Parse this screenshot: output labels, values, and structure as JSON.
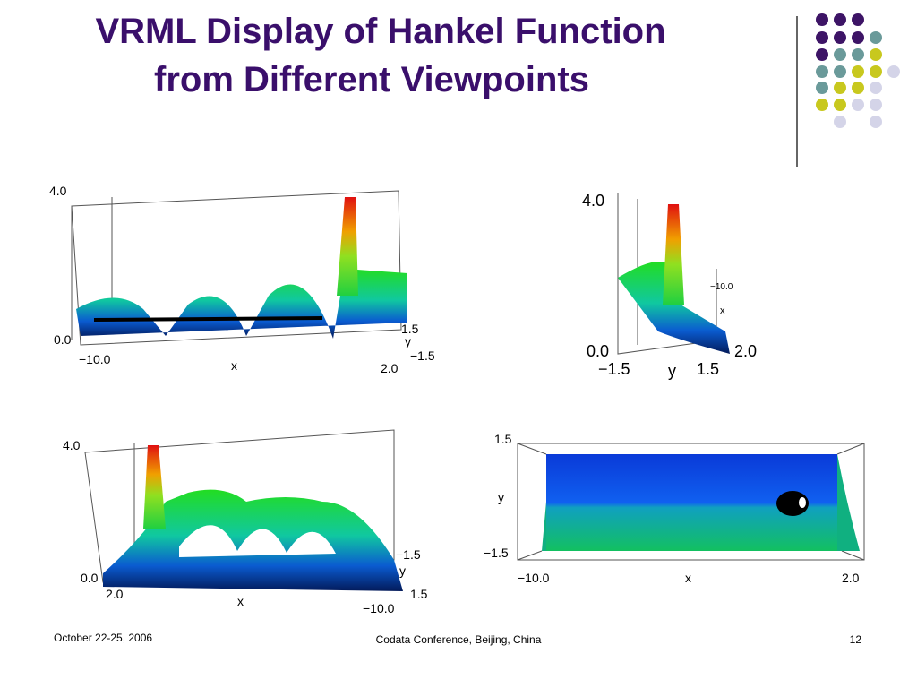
{
  "title": [
    "VRML Display of Hankel Function",
    "from Different Viewpoints"
  ],
  "views": [
    {
      "labels": [
        "4.0",
        "0.0",
        "−10.0",
        "x",
        "2.0",
        "1.5",
        "y",
        "−1.5"
      ]
    },
    {
      "labels": [
        "4.0",
        "0.0",
        "−10.0",
        "x",
        "2.0",
        "−1.5",
        "y",
        "1.5"
      ]
    },
    {
      "labels": [
        "4.0",
        "0.0",
        "2.0",
        "x",
        "−10.0",
        "−1.5",
        "y",
        "1.5"
      ]
    },
    {
      "labels": [
        "1.5",
        "y",
        "−1.5",
        "−10.0",
        "x",
        "2.0"
      ]
    }
  ],
  "footer": {
    "date": "October 22-25, 2006",
    "event": "Codata Conference, Beijing, China",
    "page": "12"
  }
}
